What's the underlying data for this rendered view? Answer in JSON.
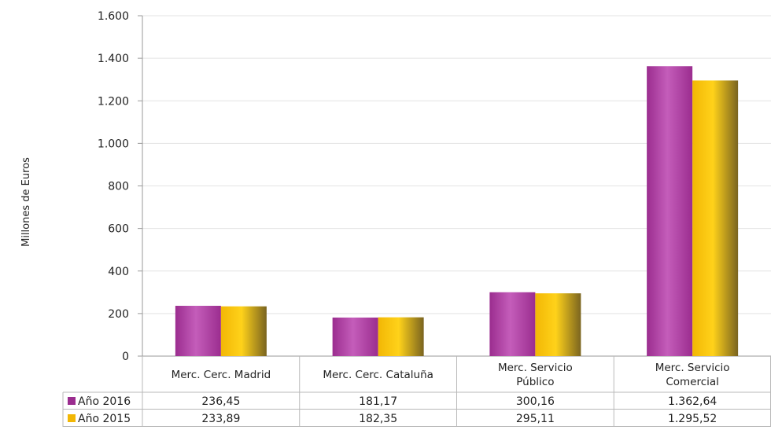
{
  "colors": {
    "series_2016": "#9B2D8F",
    "series_2016_light": "#C45DBA",
    "series_2015": "#F2B705",
    "series_2015_light": "#FFD21A",
    "series_2015_dark": "#7A6420",
    "grid": "#E3E3E3",
    "axis": "#9A9A9A",
    "table_border": "#B8B8B8"
  },
  "chart_data": {
    "type": "bar",
    "ylabel": "Millones de Euros",
    "ylim": [
      0,
      1600
    ],
    "y_ticks": [
      0,
      200,
      400,
      600,
      800,
      1000,
      1200,
      1400,
      1600
    ],
    "y_tick_labels": [
      "0",
      "200",
      "400",
      "600",
      "800",
      "1.000",
      "1.200",
      "1.400",
      "1.600"
    ],
    "grid": true,
    "legend": "data-table",
    "categories": [
      [
        "Merc. Cerc. Madrid"
      ],
      [
        "Merc. Cerc. Cataluña"
      ],
      [
        "Merc. Servicio",
        "Público"
      ],
      [
        "Merc. Servicio",
        "Comercial"
      ]
    ],
    "series": [
      {
        "name": "Año 2016",
        "values": [
          236.45,
          181.17,
          300.16,
          1362.64
        ],
        "labels": [
          "236,45",
          "181,17",
          "300,16",
          "1.362,64"
        ]
      },
      {
        "name": "Año 2015",
        "values": [
          233.89,
          182.35,
          295.11,
          1295.52
        ],
        "labels": [
          "233,89",
          "182,35",
          "295,11",
          "1.295,52"
        ]
      }
    ]
  }
}
